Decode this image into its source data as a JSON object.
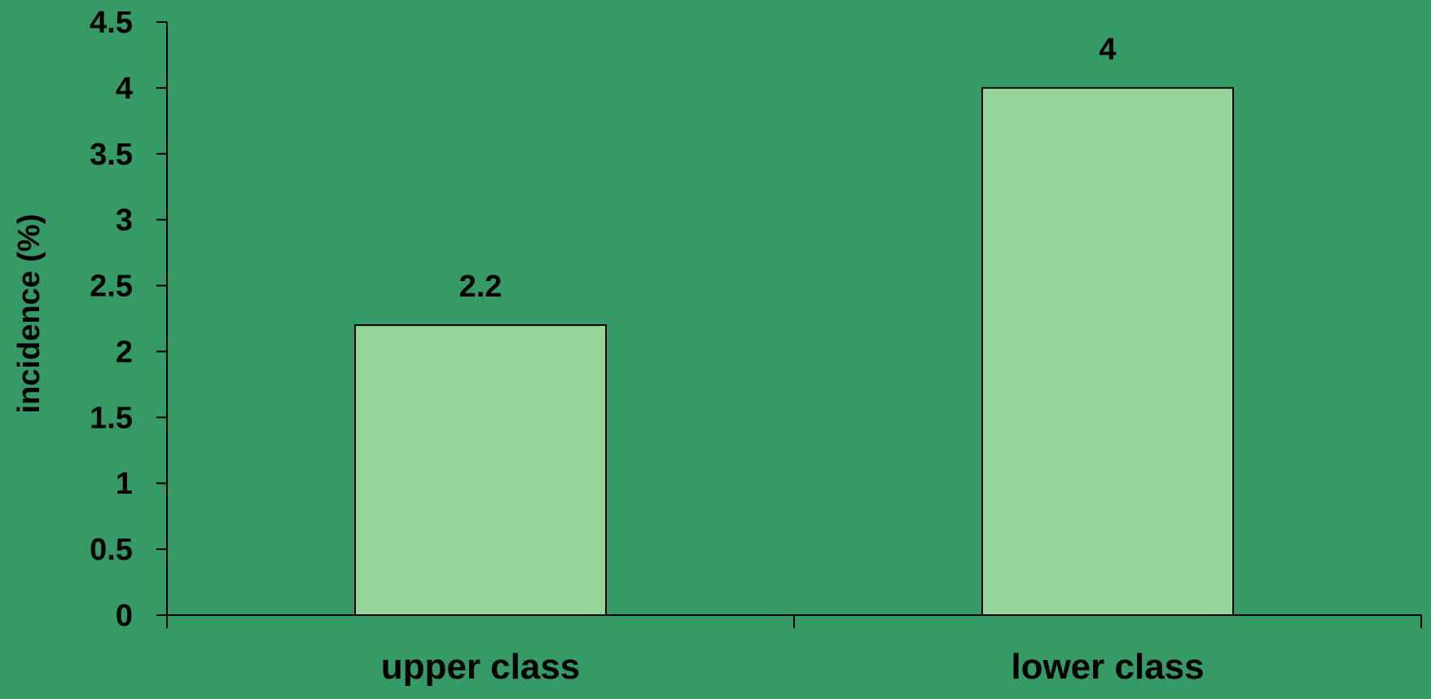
{
  "colors": {
    "background": "#359a66",
    "bar_fill": "#95d69a",
    "bar_stroke": "#000000",
    "axis": "#000000",
    "text": "#000000"
  },
  "chart_data": {
    "type": "bar",
    "title": "",
    "xlabel": "",
    "ylabel": "incidence (%)",
    "categories": [
      "upper class",
      "lower class"
    ],
    "values": [
      2.2,
      4
    ],
    "data_labels": [
      "2.2",
      "4"
    ],
    "ylim": [
      0,
      4.5
    ],
    "yticks": [
      0,
      0.5,
      1,
      1.5,
      2,
      2.5,
      3,
      3.5,
      4,
      4.5
    ],
    "ytick_labels": [
      "0",
      "0.5",
      "1",
      "1.5",
      "2",
      "2.5",
      "3",
      "3.5",
      "4",
      "4.5"
    ],
    "grid": false,
    "legend": "none"
  }
}
